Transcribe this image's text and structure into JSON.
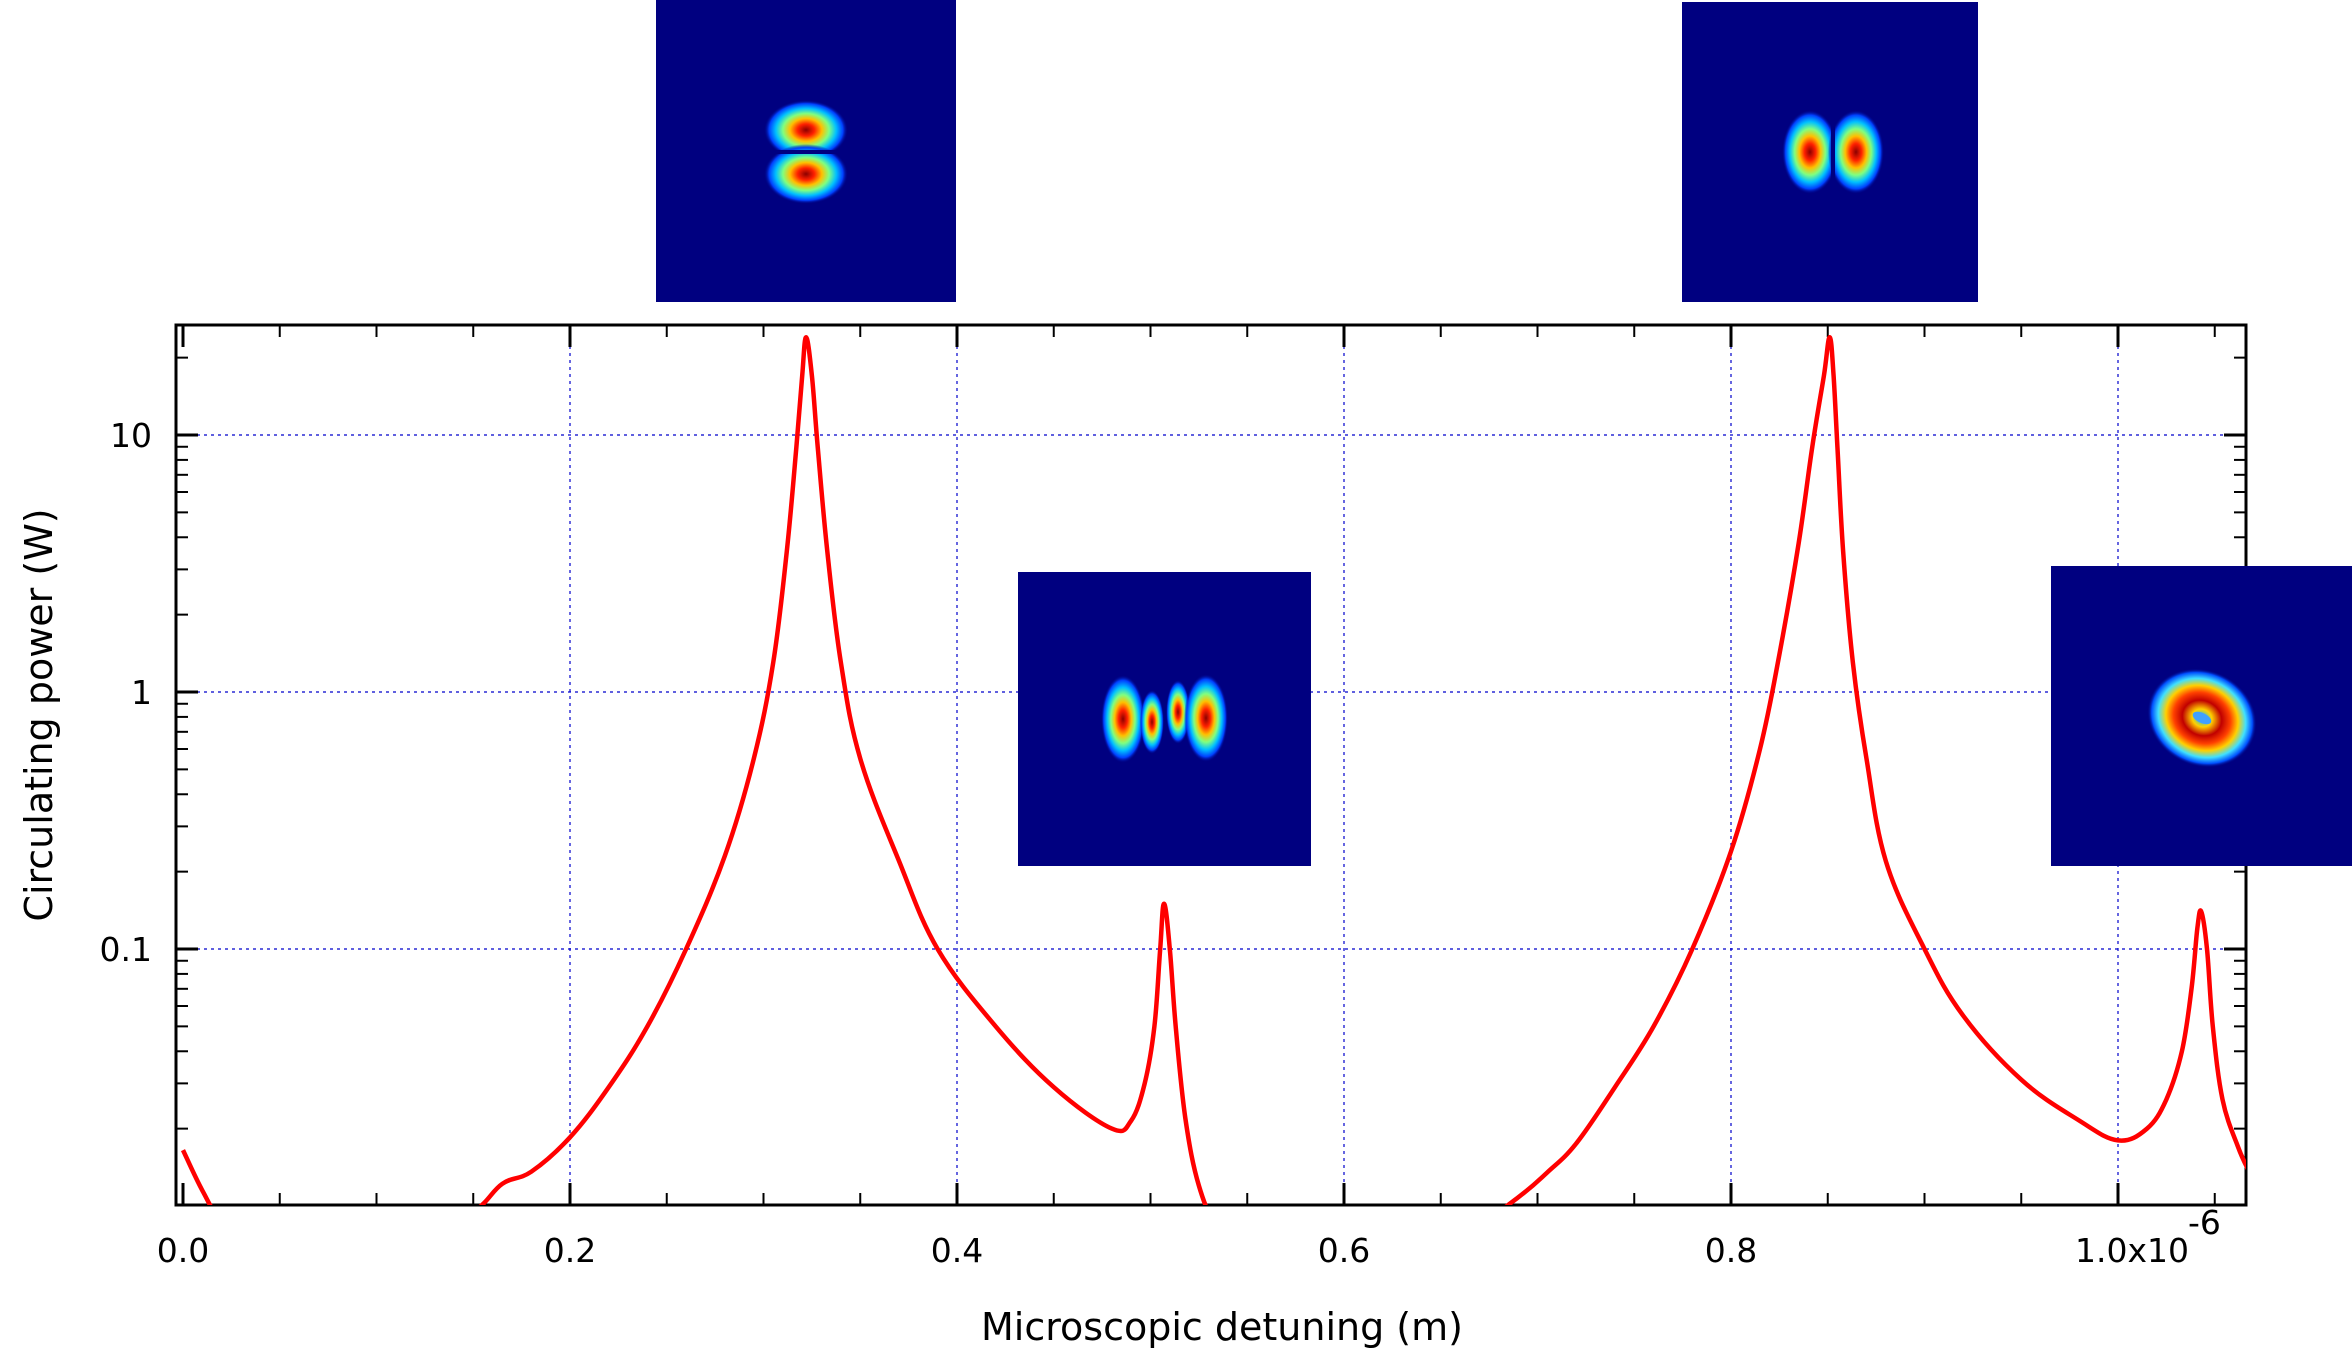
{
  "chart_data": {
    "type": "line",
    "title": "",
    "xlabel": "Microscopic detuning (m)",
    "ylabel": "Circulating power (W)",
    "x_scale_label": "x10",
    "x_scale_exponent": "-6",
    "xlim": [
      0.0,
      1.07
    ],
    "ylim": [
      0.0055,
      25
    ],
    "y_scale": "log",
    "grid": true,
    "x_ticks": [
      {
        "value": 0.0,
        "label": "0.0"
      },
      {
        "value": 0.2,
        "label": "0.2"
      },
      {
        "value": 0.4,
        "label": "0.4"
      },
      {
        "value": 0.6,
        "label": "0.6"
      },
      {
        "value": 0.8,
        "label": "0.8"
      },
      {
        "value": 1.0,
        "label": "1.0"
      }
    ],
    "y_ticks": [
      {
        "value": 0.1,
        "label": "0.1"
      },
      {
        "value": 1,
        "label": "1"
      },
      {
        "value": 10,
        "label": "10"
      }
    ],
    "series": [
      {
        "color": "#ff0000",
        "x": [
          0.0,
          0.01,
          0.02,
          0.04,
          0.065,
          0.09,
          0.12,
          0.15,
          0.165,
          0.18,
          0.2,
          0.22,
          0.24,
          0.26,
          0.28,
          0.295,
          0.305,
          0.312,
          0.317,
          0.32,
          0.322,
          0.325,
          0.328,
          0.333,
          0.34,
          0.35,
          0.37,
          0.39,
          0.42,
          0.45,
          0.48,
          0.49,
          0.497,
          0.502,
          0.505,
          0.507,
          0.51,
          0.513,
          0.518,
          0.525,
          0.535,
          0.55,
          0.57,
          0.6,
          0.63,
          0.66,
          0.69,
          0.705,
          0.72,
          0.74,
          0.76,
          0.78,
          0.8,
          0.815,
          0.825,
          0.835,
          0.842,
          0.848,
          0.851,
          0.853,
          0.855,
          0.858,
          0.863,
          0.87,
          0.88,
          0.9,
          0.92,
          0.95,
          0.98,
          1.0,
          1.015,
          1.025,
          1.033,
          1.038,
          1.041,
          1.043,
          1.046,
          1.049,
          1.054,
          1.062,
          1.068
        ],
        "y": [
          0.0165,
          0.0115,
          0.0088,
          0.007,
          0.0063,
          0.0064,
          0.0074,
          0.0095,
          0.0122,
          0.0136,
          0.0185,
          0.029,
          0.05,
          0.1,
          0.23,
          0.55,
          1.3,
          3.5,
          9.0,
          17.0,
          24.0,
          17.0,
          9.0,
          3.5,
          1.3,
          0.55,
          0.22,
          0.1,
          0.05,
          0.029,
          0.02,
          0.0215,
          0.03,
          0.05,
          0.1,
          0.15,
          0.1,
          0.05,
          0.022,
          0.012,
          0.0082,
          0.0068,
          0.006,
          0.0057,
          0.006,
          0.0075,
          0.0108,
          0.0135,
          0.0175,
          0.029,
          0.05,
          0.1,
          0.24,
          0.6,
          1.4,
          3.8,
          9.0,
          17.0,
          24.0,
          17.0,
          9.0,
          3.5,
          1.3,
          0.55,
          0.22,
          0.1,
          0.055,
          0.031,
          0.0215,
          0.018,
          0.02,
          0.026,
          0.04,
          0.07,
          0.12,
          0.14,
          0.1,
          0.05,
          0.026,
          0.017,
          0.0135
        ]
      }
    ],
    "insets": [
      {
        "name": "mode-inset-1",
        "description_icon": "two-lobe-horizontal-split-mode"
      },
      {
        "name": "mode-inset-2",
        "description_icon": "four-lobe-vertical-stripes-mode"
      },
      {
        "name": "mode-inset-3",
        "description_icon": "two-lobe-vertical-split-mode"
      },
      {
        "name": "mode-inset-4",
        "description_icon": "ring-donut-mode"
      }
    ],
    "colors": {
      "line": "#ff0000",
      "grid": "#0000cc",
      "inset_background": "#000080"
    }
  }
}
